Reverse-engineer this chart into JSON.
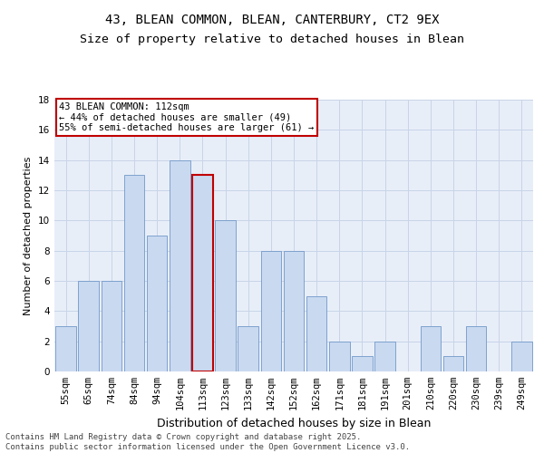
{
  "title_line1": "43, BLEAN COMMON, BLEAN, CANTERBURY, CT2 9EX",
  "title_line2": "Size of property relative to detached houses in Blean",
  "xlabel": "Distribution of detached houses by size in Blean",
  "ylabel": "Number of detached properties",
  "categories": [
    "55sqm",
    "65sqm",
    "74sqm",
    "84sqm",
    "94sqm",
    "104sqm",
    "113sqm",
    "123sqm",
    "133sqm",
    "142sqm",
    "152sqm",
    "162sqm",
    "171sqm",
    "181sqm",
    "191sqm",
    "201sqm",
    "210sqm",
    "220sqm",
    "230sqm",
    "239sqm",
    "249sqm"
  ],
  "values": [
    3,
    6,
    6,
    13,
    9,
    14,
    13,
    10,
    3,
    8,
    8,
    5,
    2,
    1,
    2,
    0,
    3,
    1,
    3,
    0,
    2
  ],
  "bar_color": "#c9d9f0",
  "bar_edge_color": "#7098c8",
  "highlight_index": 6,
  "highlight_edge_color": "#c00000",
  "ylim": [
    0,
    18
  ],
  "yticks": [
    0,
    2,
    4,
    6,
    8,
    10,
    12,
    14,
    16,
    18
  ],
  "grid_color": "#c8d4e8",
  "bg_color": "#e8eef8",
  "annotation_title": "43 BLEAN COMMON: 112sqm",
  "annotation_line1": "← 44% of detached houses are smaller (49)",
  "annotation_line2": "55% of semi-detached houses are larger (61) →",
  "annotation_box_color": "#ffffff",
  "annotation_border_color": "#c00000",
  "footer_line1": "Contains HM Land Registry data © Crown copyright and database right 2025.",
  "footer_line2": "Contains public sector information licensed under the Open Government Licence v3.0.",
  "title1_fontsize": 10,
  "title2_fontsize": 9.5,
  "xlabel_fontsize": 9,
  "ylabel_fontsize": 8,
  "tick_fontsize": 7.5,
  "annotation_fontsize": 7.5,
  "footer_fontsize": 6.5
}
